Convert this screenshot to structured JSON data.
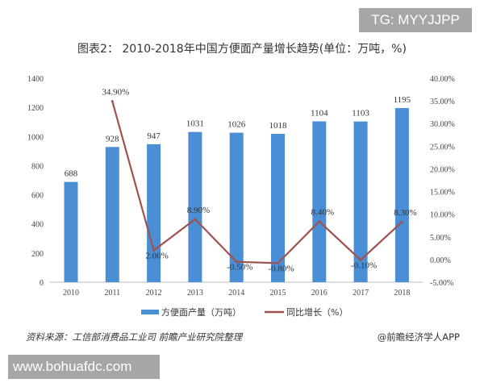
{
  "watermarks": {
    "top_right": "TG: MYYJJPP",
    "bottom_left": "www.bohuafdc.com"
  },
  "source": "资料来源：工信部消费品工业司 前瞻产业研究院整理",
  "credit": "@前瞻经济学人APP",
  "chart_data": {
    "type": "bar+line",
    "title": "图表2： 2010-2018年中国方便面产量增长趋势(单位：万吨，%)",
    "categories": [
      "2010",
      "2011",
      "2012",
      "2013",
      "2014",
      "2015",
      "2016",
      "2017",
      "2018"
    ],
    "series": [
      {
        "name": "方便面产量（万吨）",
        "type": "bar",
        "axis": "left",
        "color": "#4a8fd6",
        "values": [
          688,
          928,
          947,
          1031,
          1026,
          1018,
          1104,
          1103,
          1195
        ],
        "labels": [
          "688",
          "928",
          "947",
          "1031",
          "1026",
          "1018",
          "1104",
          "1103",
          "1195"
        ]
      },
      {
        "name": "同比增长（%）",
        "type": "line",
        "axis": "right",
        "color": "#a0524f",
        "values": [
          null,
          34.9,
          2.0,
          8.9,
          -0.5,
          -0.8,
          8.4,
          -0.1,
          8.3
        ],
        "labels": [
          "",
          "34.90%",
          "2.00%",
          "8.90%",
          "-0.50%",
          "-0.80%",
          "8.40%",
          "-0.10%",
          "8.30%"
        ]
      }
    ],
    "y_left": {
      "range": [
        0,
        1400
      ],
      "ticks": [
        "0",
        "200",
        "400",
        "600",
        "800",
        "1000",
        "1200",
        "1400"
      ]
    },
    "y_right": {
      "range": [
        -5,
        40
      ],
      "ticks": [
        "-5.00%",
        "0.00%",
        "5.00%",
        "10.00%",
        "15.00%",
        "20.00%",
        "25.00%",
        "30.00%",
        "35.00%",
        "40.00%"
      ]
    },
    "grid": false,
    "legend": "bottom"
  }
}
